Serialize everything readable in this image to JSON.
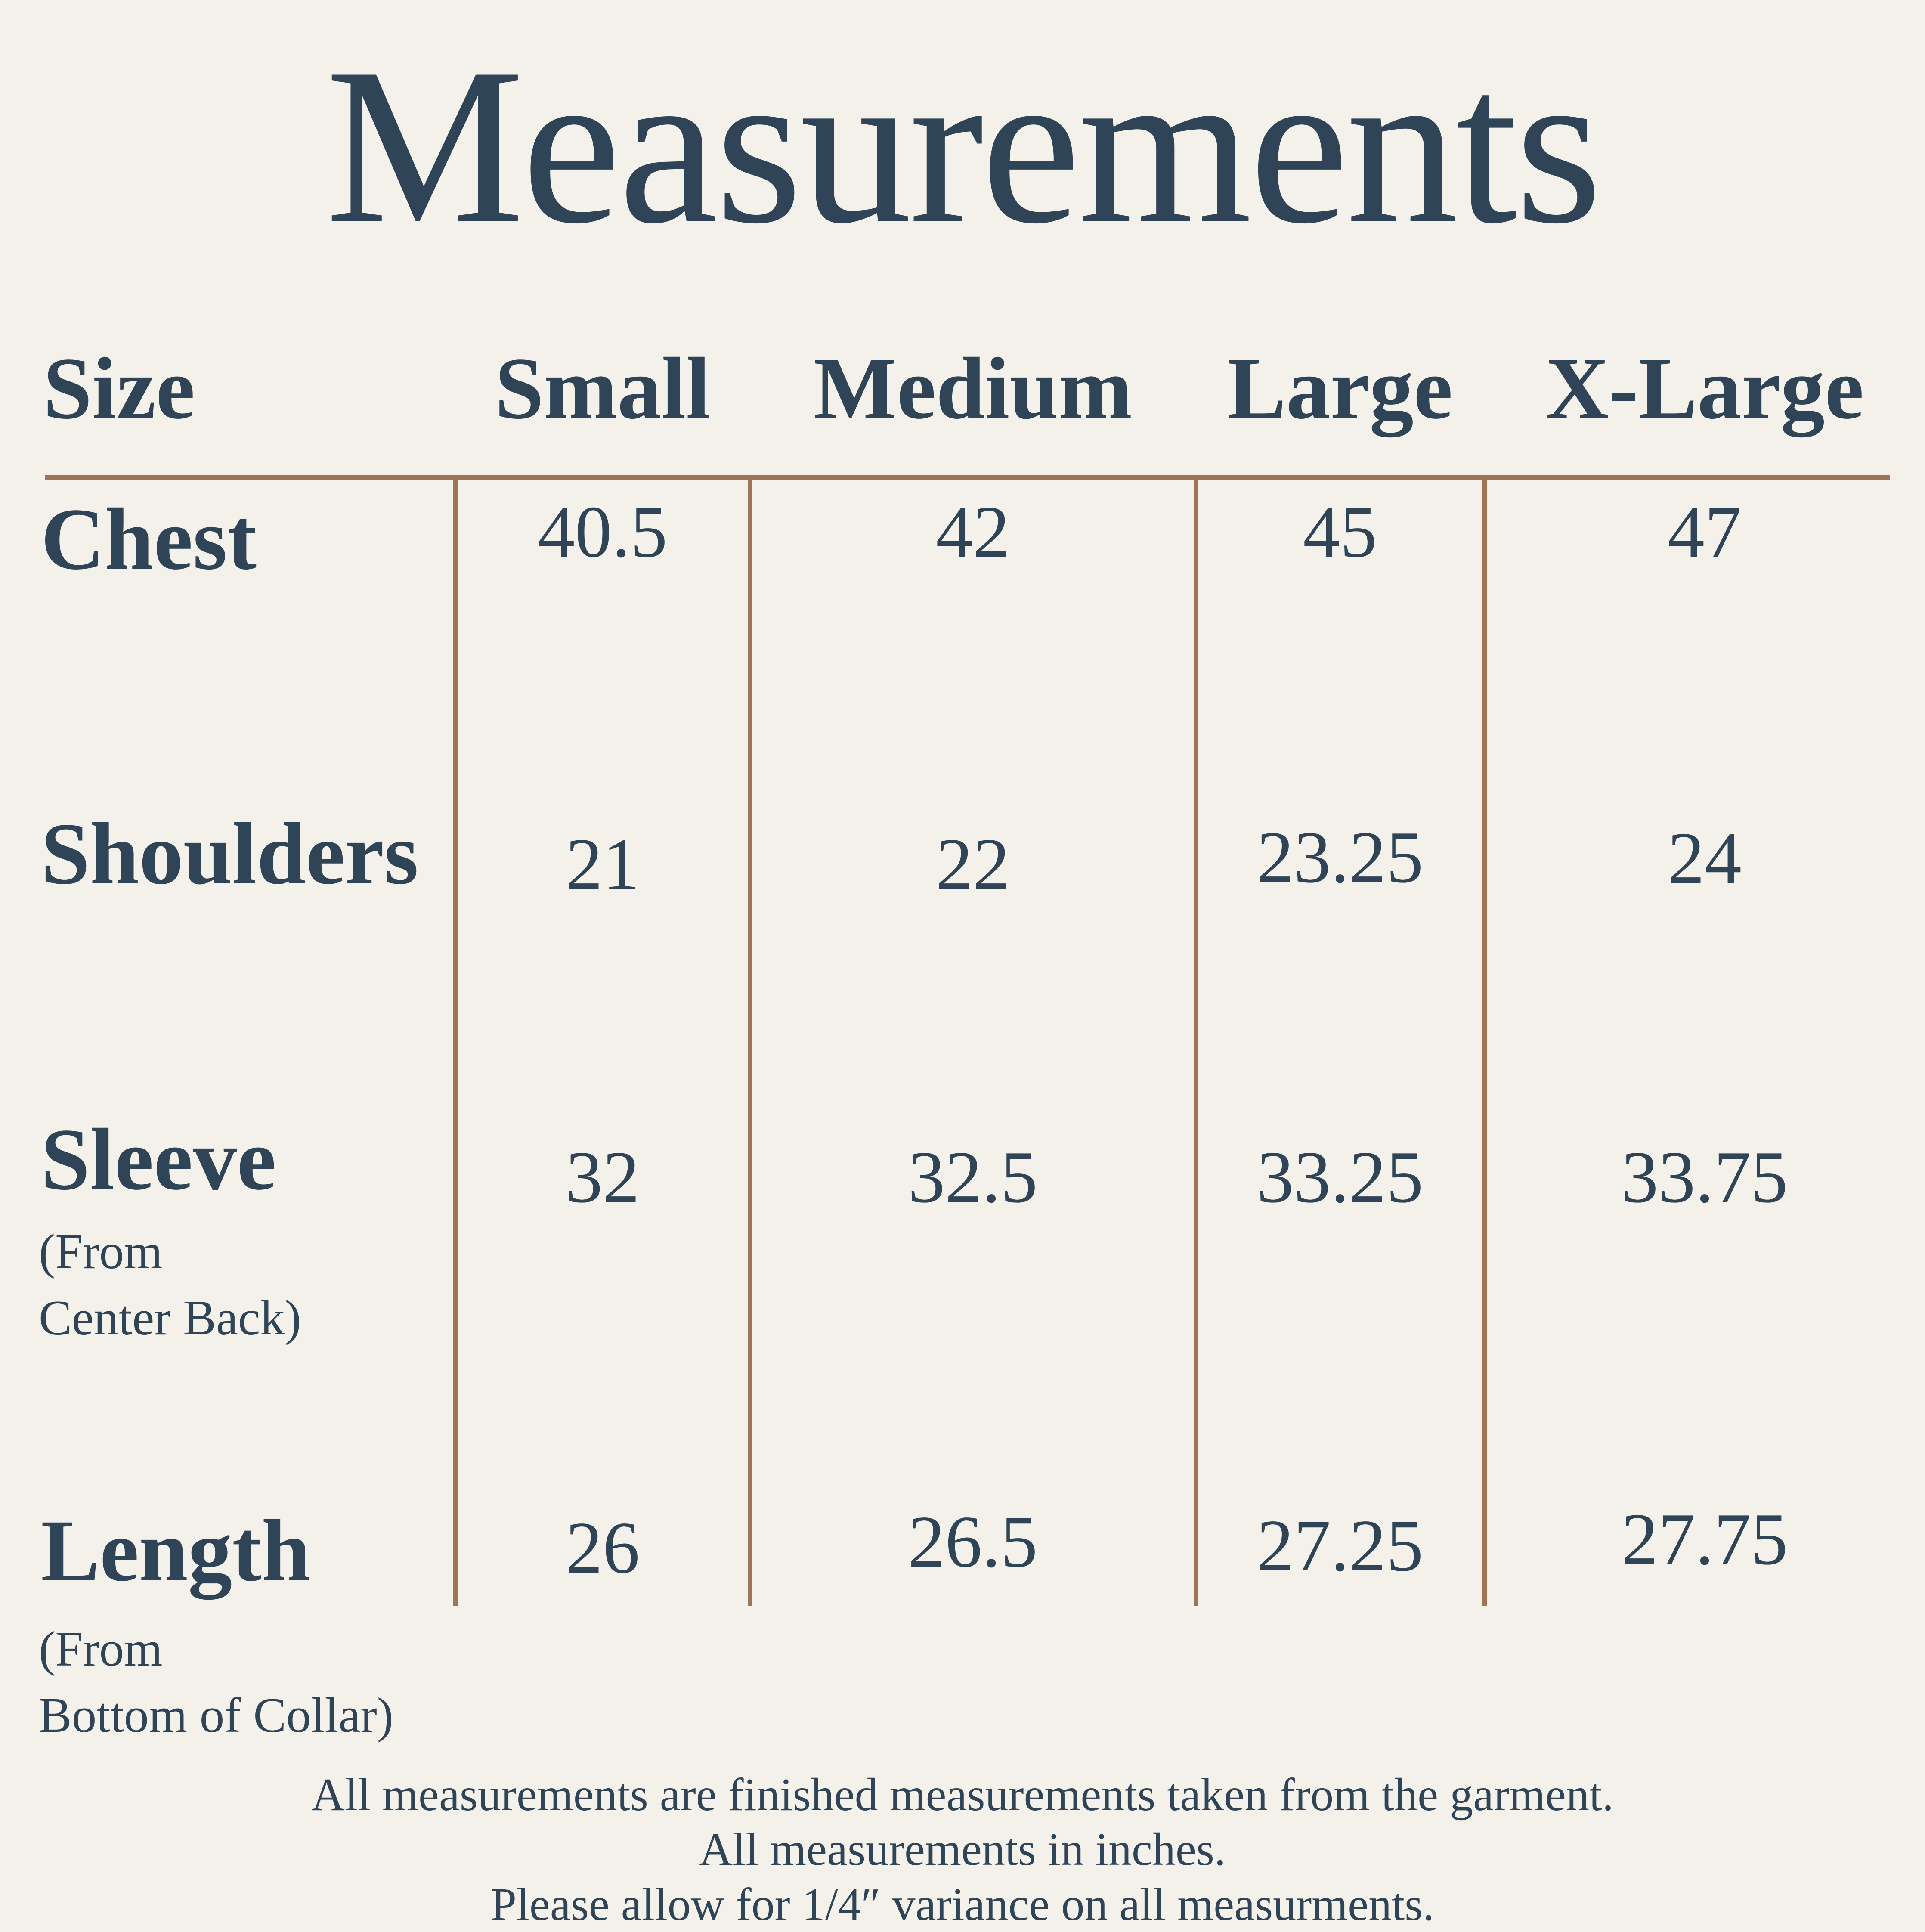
{
  "title": "Measurements",
  "table": {
    "size_header": "Size",
    "columns": [
      "Small",
      "Medium",
      "Large",
      "X-Large"
    ],
    "rows": [
      {
        "label": "Chest",
        "sublabel": "",
        "values": [
          "40.5",
          "42",
          "45",
          "47"
        ]
      },
      {
        "label": "Shoulders",
        "sublabel": "",
        "values": [
          "21",
          "22",
          "23.25",
          "24"
        ]
      },
      {
        "label": "Sleeve",
        "sublabel": "(From\nCenter Back)",
        "values": [
          "32",
          "32.5",
          "33.25",
          "33.75"
        ]
      },
      {
        "label": "Length",
        "sublabel": "(From\nBottom of Collar)",
        "values": [
          "26",
          "26.5",
          "27.25",
          "27.75"
        ]
      }
    ]
  },
  "footer": {
    "line1": "All measurements are finished measurements taken from the garment.",
    "line2": "All measurements in inches.",
    "line3": "Please allow for 1/4″ variance on all measurments."
  },
  "colors": {
    "background": "#f3f1ea",
    "text": "#2f4557",
    "line": "#9e7655"
  },
  "chart_data": {
    "type": "table",
    "title": "Measurements",
    "columns": [
      "Size",
      "Small",
      "Medium",
      "Large",
      "X-Large"
    ],
    "rows": [
      [
        "Chest",
        40.5,
        42,
        45,
        47
      ],
      [
        "Shoulders",
        21,
        22,
        23.25,
        24
      ],
      [
        "Sleeve (From Center Back)",
        32,
        32.5,
        33.25,
        33.75
      ],
      [
        "Length (From Bottom of Collar)",
        26,
        26.5,
        27.25,
        27.75
      ]
    ],
    "units": "inches",
    "notes": [
      "All measurements are finished measurements taken from the garment.",
      "All measurements in inches.",
      "Please allow for 1/4″ variance on all measurments."
    ]
  }
}
